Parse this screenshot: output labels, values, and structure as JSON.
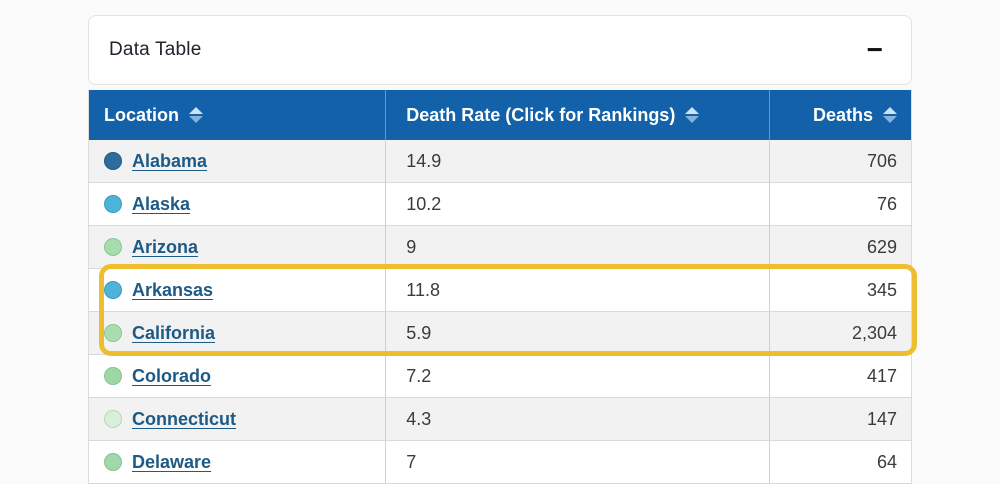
{
  "panel": {
    "title": "Data Table",
    "collapse_label": "−"
  },
  "table": {
    "columns": [
      {
        "label": "Location"
      },
      {
        "label": "Death Rate (Click for Rankings)"
      },
      {
        "label": "Deaths"
      }
    ],
    "rows": [
      {
        "location": "Alabama",
        "death_rate": "14.9",
        "deaths": "706",
        "dot_color": "#2d6d9d",
        "dot_border": "#22587f",
        "highlighted": false
      },
      {
        "location": "Alaska",
        "death_rate": "10.2",
        "deaths": "76",
        "dot_color": "#4db3d9",
        "dot_border": "#3a9cc4",
        "highlighted": false
      },
      {
        "location": "Arizona",
        "death_rate": "9",
        "deaths": "629",
        "dot_color": "#a7dcae",
        "dot_border": "#8bc795",
        "highlighted": false
      },
      {
        "location": "Arkansas",
        "death_rate": "11.8",
        "deaths": "345",
        "dot_color": "#4db3d9",
        "dot_border": "#3a9cc4",
        "highlighted": true
      },
      {
        "location": "California",
        "death_rate": "5.9",
        "deaths": "2,304",
        "dot_color": "#a8ddb0",
        "dot_border": "#8bc795",
        "highlighted": true
      },
      {
        "location": "Colorado",
        "death_rate": "7.2",
        "deaths": "417",
        "dot_color": "#9ed7a6",
        "dot_border": "#83c28e",
        "highlighted": false
      },
      {
        "location": "Connecticut",
        "death_rate": "4.3",
        "deaths": "147",
        "dot_color": "#d9efd9",
        "dot_border": "#b5d9b5",
        "highlighted": false
      },
      {
        "location": "Delaware",
        "death_rate": "7",
        "deaths": "64",
        "dot_color": "#a0d8a8",
        "dot_border": "#86c390",
        "highlighted": false
      }
    ]
  },
  "colors": {
    "header_bg": "#1361a8",
    "header_text": "#ffffff",
    "row_alt_bg": "#f2f2f2",
    "link_color": "#1d5a85",
    "highlight_border": "#edbe2f",
    "sort_icon_up": "#cfe2f3",
    "sort_icon_down": "#85b2dc"
  }
}
